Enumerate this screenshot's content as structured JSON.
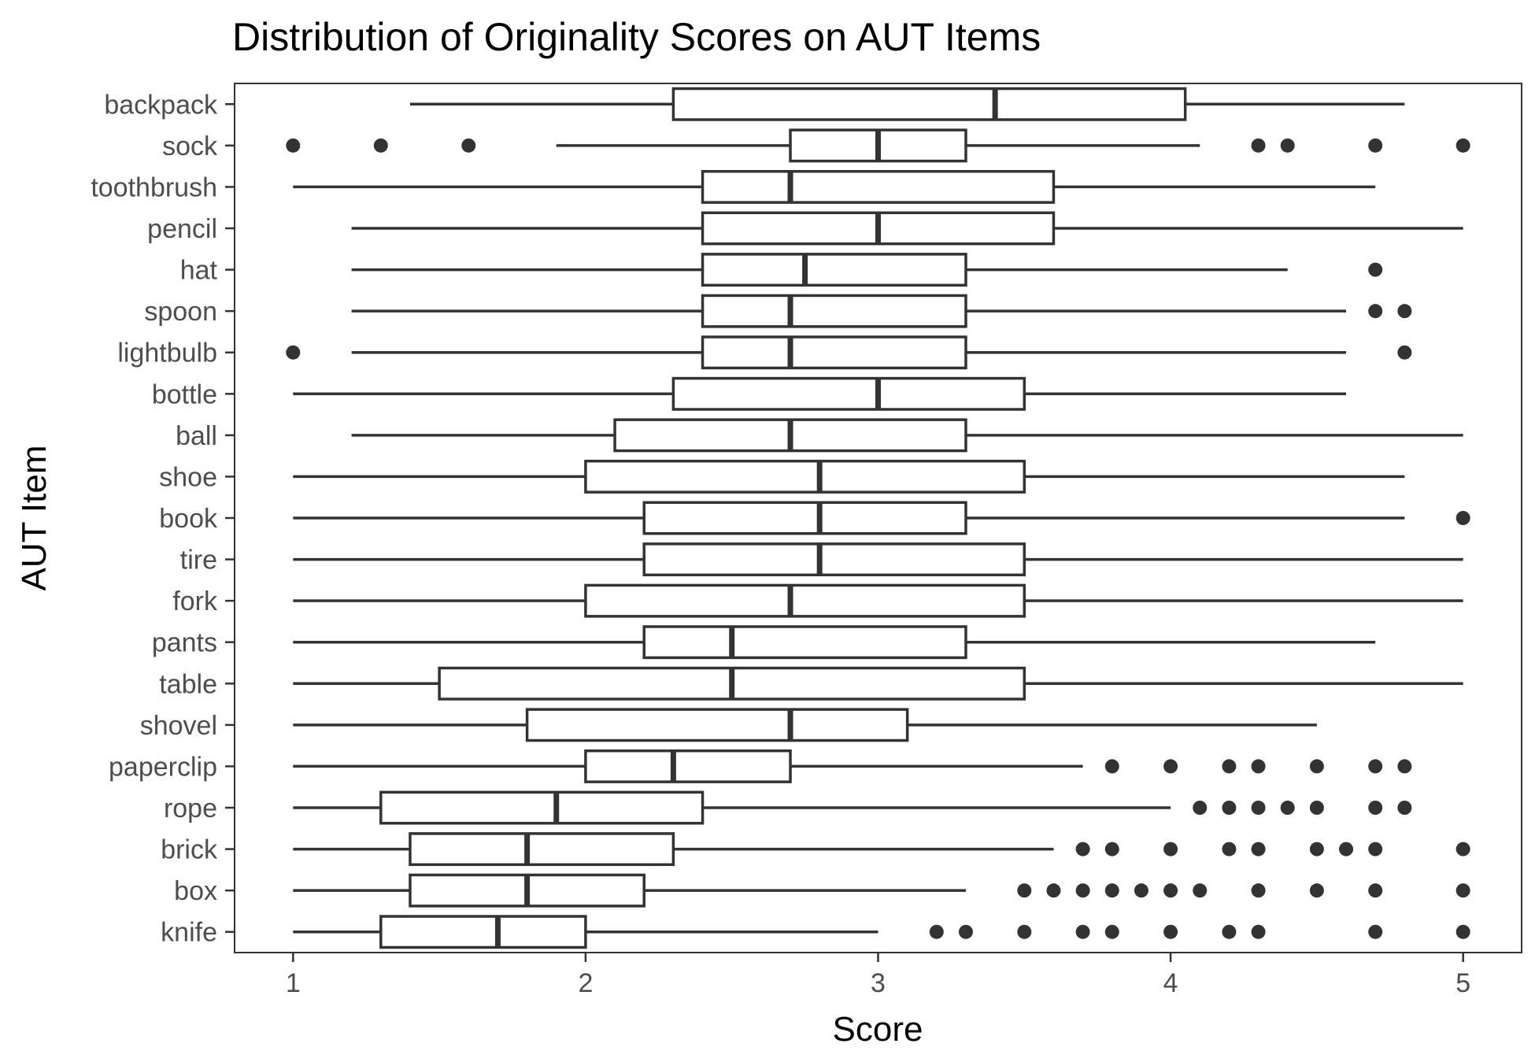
{
  "chart_data": {
    "type": "boxplot",
    "orientation": "horizontal",
    "title": "Distribution of Originality Scores on AUT Items",
    "xlabel": "Score",
    "ylabel": "AUT Item",
    "xlim": [
      0.8,
      5.2
    ],
    "xticks": [
      1,
      2,
      3,
      4,
      5
    ],
    "grid": false,
    "legend": "none",
    "colors": {
      "stroke": "#333333",
      "fill": "#ffffff",
      "panel_border": "#333333",
      "tick_text": "#4d4d4d"
    },
    "items": [
      {
        "name": "backpack",
        "whisker_low": 1.4,
        "q1": 2.3,
        "median": 3.4,
        "q3": 4.05,
        "whisker_high": 4.8,
        "outliers": []
      },
      {
        "name": "sock",
        "whisker_low": 1.9,
        "q1": 2.7,
        "median": 3.0,
        "q3": 3.3,
        "whisker_high": 4.1,
        "outliers": [
          1.0,
          1.3,
          1.6,
          4.3,
          4.4,
          4.7,
          5.0
        ]
      },
      {
        "name": "toothbrush",
        "whisker_low": 1.0,
        "q1": 2.4,
        "median": 2.7,
        "q3": 3.6,
        "whisker_high": 4.7,
        "outliers": []
      },
      {
        "name": "pencil",
        "whisker_low": 1.2,
        "q1": 2.4,
        "median": 3.0,
        "q3": 3.6,
        "whisker_high": 5.0,
        "outliers": []
      },
      {
        "name": "hat",
        "whisker_low": 1.2,
        "q1": 2.4,
        "median": 2.75,
        "q3": 3.3,
        "whisker_high": 4.4,
        "outliers": [
          4.7
        ]
      },
      {
        "name": "spoon",
        "whisker_low": 1.2,
        "q1": 2.4,
        "median": 2.7,
        "q3": 3.3,
        "whisker_high": 4.6,
        "outliers": [
          4.7,
          4.8
        ]
      },
      {
        "name": "lightbulb",
        "whisker_low": 1.2,
        "q1": 2.4,
        "median": 2.7,
        "q3": 3.3,
        "whisker_high": 4.6,
        "outliers": [
          1.0,
          4.8
        ]
      },
      {
        "name": "bottle",
        "whisker_low": 1.0,
        "q1": 2.3,
        "median": 3.0,
        "q3": 3.5,
        "whisker_high": 4.6,
        "outliers": []
      },
      {
        "name": "ball",
        "whisker_low": 1.2,
        "q1": 2.1,
        "median": 2.7,
        "q3": 3.3,
        "whisker_high": 5.0,
        "outliers": []
      },
      {
        "name": "shoe",
        "whisker_low": 1.0,
        "q1": 2.0,
        "median": 2.8,
        "q3": 3.5,
        "whisker_high": 4.8,
        "outliers": []
      },
      {
        "name": "book",
        "whisker_low": 1.0,
        "q1": 2.2,
        "median": 2.8,
        "q3": 3.3,
        "whisker_high": 4.8,
        "outliers": [
          5.0
        ]
      },
      {
        "name": "tire",
        "whisker_low": 1.0,
        "q1": 2.2,
        "median": 2.8,
        "q3": 3.5,
        "whisker_high": 5.0,
        "outliers": []
      },
      {
        "name": "fork",
        "whisker_low": 1.0,
        "q1": 2.0,
        "median": 2.7,
        "q3": 3.5,
        "whisker_high": 5.0,
        "outliers": []
      },
      {
        "name": "pants",
        "whisker_low": 1.0,
        "q1": 2.2,
        "median": 2.5,
        "q3": 3.3,
        "whisker_high": 4.7,
        "outliers": []
      },
      {
        "name": "table",
        "whisker_low": 1.0,
        "q1": 1.5,
        "median": 2.5,
        "q3": 3.5,
        "whisker_high": 5.0,
        "outliers": []
      },
      {
        "name": "shovel",
        "whisker_low": 1.0,
        "q1": 1.8,
        "median": 2.7,
        "q3": 3.1,
        "whisker_high": 4.5,
        "outliers": []
      },
      {
        "name": "paperclip",
        "whisker_low": 1.0,
        "q1": 2.0,
        "median": 2.3,
        "q3": 2.7,
        "whisker_high": 3.7,
        "outliers": [
          3.8,
          4.0,
          4.2,
          4.3,
          4.5,
          4.7,
          4.8
        ]
      },
      {
        "name": "rope",
        "whisker_low": 1.0,
        "q1": 1.3,
        "median": 1.9,
        "q3": 2.4,
        "whisker_high": 4.0,
        "outliers": [
          4.1,
          4.2,
          4.3,
          4.4,
          4.5,
          4.7,
          4.8
        ]
      },
      {
        "name": "brick",
        "whisker_low": 1.0,
        "q1": 1.4,
        "median": 1.8,
        "q3": 2.3,
        "whisker_high": 3.6,
        "outliers": [
          3.7,
          3.8,
          4.0,
          4.2,
          4.3,
          4.5,
          4.6,
          4.7,
          5.0
        ]
      },
      {
        "name": "box",
        "whisker_low": 1.0,
        "q1": 1.4,
        "median": 1.8,
        "q3": 2.2,
        "whisker_high": 3.3,
        "outliers": [
          3.5,
          3.6,
          3.7,
          3.8,
          3.9,
          4.0,
          4.1,
          4.3,
          4.5,
          4.7,
          5.0
        ]
      },
      {
        "name": "knife",
        "whisker_low": 1.0,
        "q1": 1.3,
        "median": 1.7,
        "q3": 2.0,
        "whisker_high": 3.0,
        "outliers": [
          3.2,
          3.3,
          3.5,
          3.7,
          3.8,
          4.0,
          4.2,
          4.3,
          4.7,
          5.0
        ]
      }
    ]
  }
}
